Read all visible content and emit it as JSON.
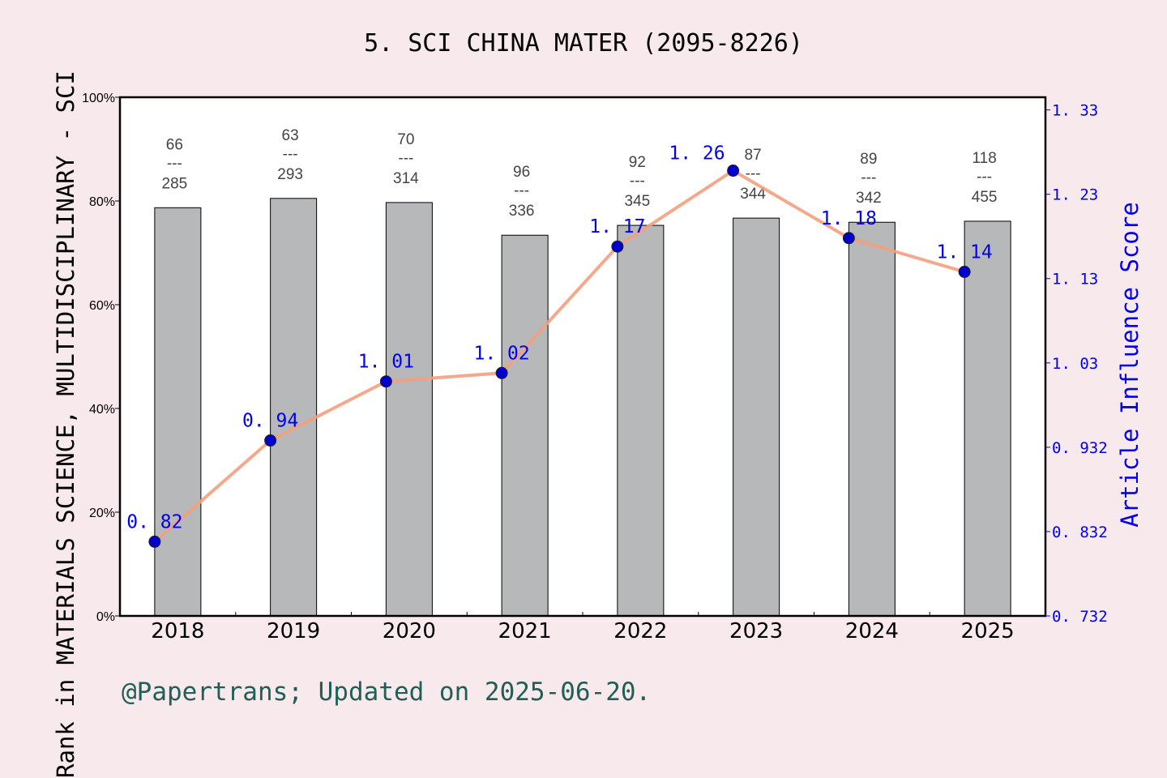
{
  "chart_data": {
    "type": "bar+line",
    "title": "5. SCI CHINA MATER (2095-8226)",
    "categories": [
      "2018",
      "2019",
      "2020",
      "2021",
      "2022",
      "2023",
      "2024",
      "2025"
    ],
    "bar_series": {
      "values_percent": [
        78.7,
        80.5,
        79.7,
        73.4,
        75.3,
        76.7,
        75.9,
        76.1
      ],
      "rank": [
        66,
        63,
        70,
        96,
        92,
        87,
        89,
        118
      ],
      "total": [
        285,
        293,
        314,
        336,
        345,
        344,
        342,
        455
      ],
      "separator": "---",
      "color": "#b7b8ba"
    },
    "line_series": {
      "values": [
        0.82,
        0.94,
        1.01,
        1.02,
        1.17,
        1.26,
        1.18,
        1.14
      ],
      "labels": [
        "0. 82",
        "0. 94",
        "1. 01",
        "1. 02",
        "1. 17",
        "1. 26",
        "1. 18",
        "1. 14"
      ],
      "line_color": "#f4a07f",
      "marker_color": "#0000cc"
    },
    "ylabel_left": "Rank in MATERIALS SCIENCE, MULTIDISCIPLINARY - SCI",
    "ylabel_right": "Article Influence Score",
    "ylim_left": [
      0,
      100
    ],
    "ylim_right": [
      0.732,
      1.347
    ],
    "yticks_left": [
      "0%",
      "20%",
      "40%",
      "60%",
      "80%",
      "100%"
    ],
    "yticks_right": [
      "0. 732",
      "0. 832",
      "0. 932",
      "1. 03",
      "1. 13",
      "1. 23",
      "1. 33"
    ],
    "yticks_right_values": [
      0.732,
      0.832,
      0.932,
      1.032,
      1.132,
      1.232,
      1.332
    ],
    "grid": false,
    "footer": "@Papertrans; Updated on 2025-06-20."
  }
}
